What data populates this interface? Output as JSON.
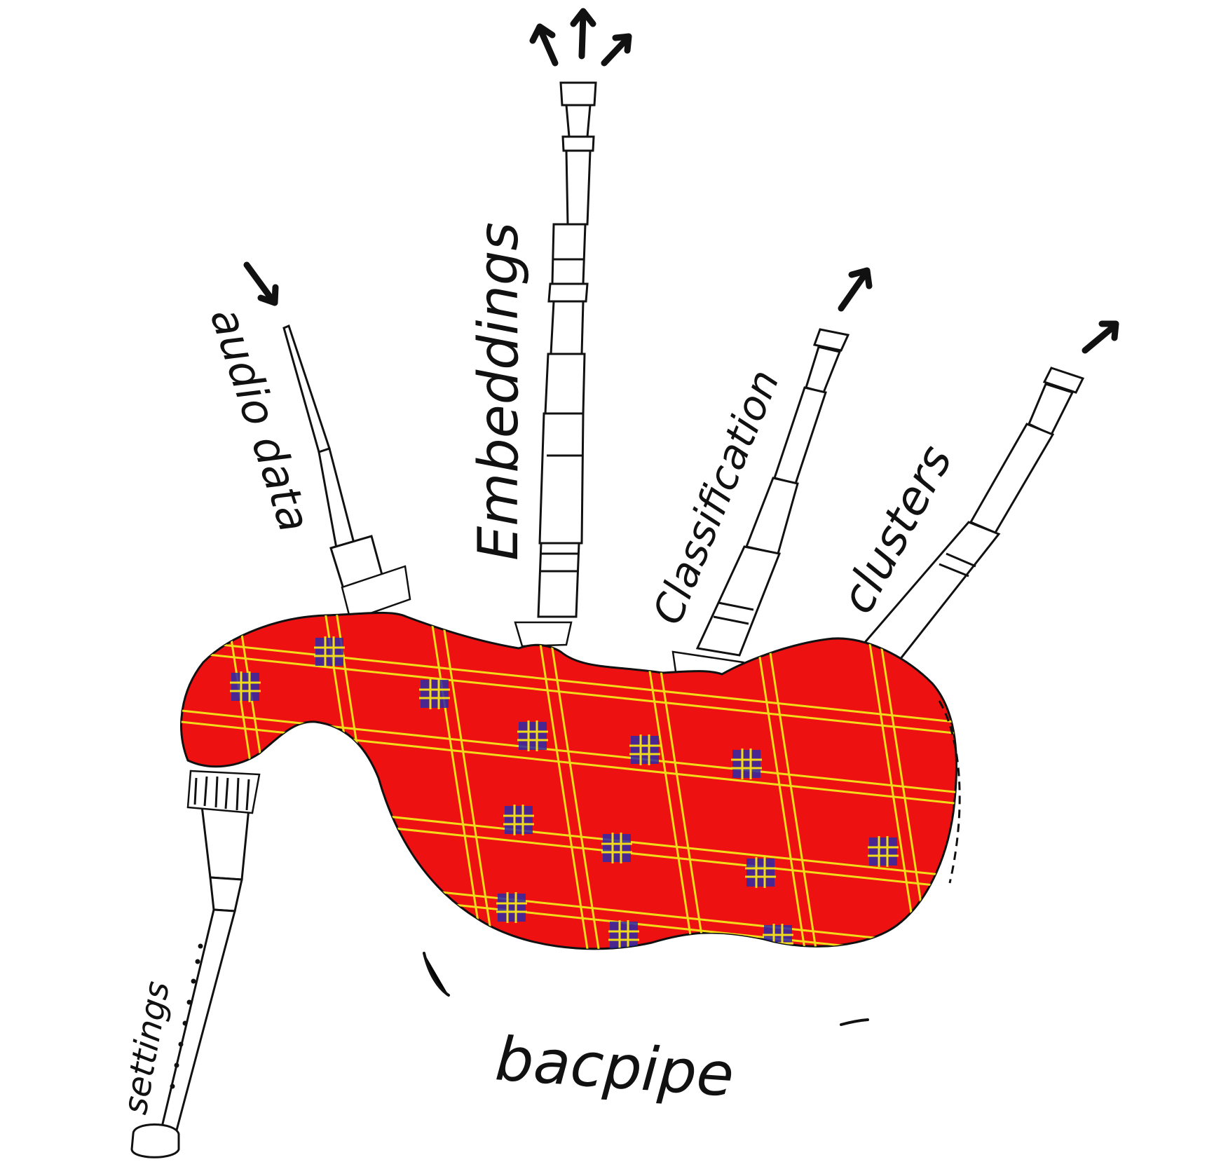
{
  "title": "bacpipe",
  "labels": {
    "audio_data": "audio data",
    "embeddings": "Embeddings",
    "classification": "Classification",
    "clusters": "clusters",
    "settings": "settings"
  },
  "colors": {
    "bag": "#ee1111",
    "tartan_line": "#f2dc1a",
    "tartan_check": "#2d2aa8",
    "ink": "#111111",
    "pipe": "#ffffff"
  }
}
